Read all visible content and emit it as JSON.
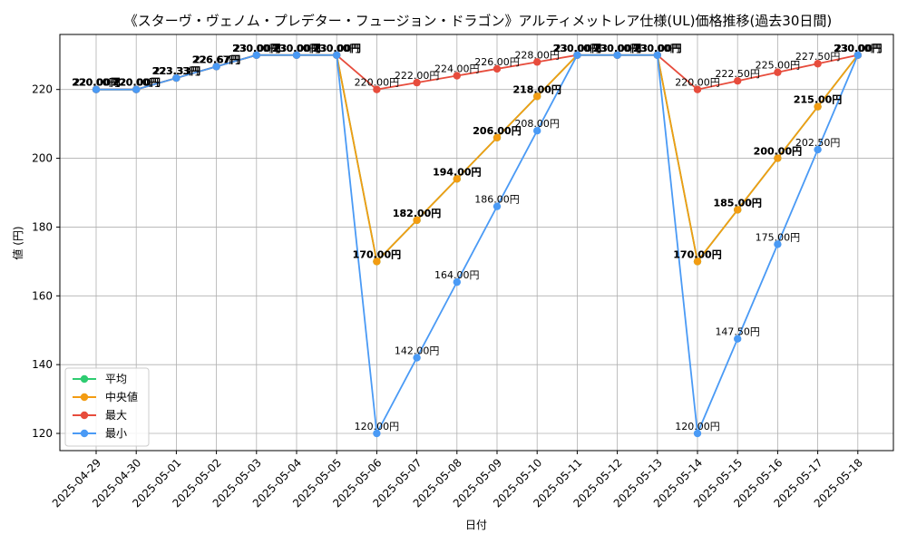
{
  "chart_data": {
    "type": "line",
    "title": "《スターヴ・ヴェノム・プレデター・フュージョン・ドラゴン》アルティメットレア仕様(UL)価格推移(過去30日間)",
    "xlabel": "日付",
    "ylabel": "値 (円)",
    "ylim": [
      115,
      236
    ],
    "yticks": [
      120,
      140,
      160,
      180,
      200,
      220
    ],
    "grid": true,
    "legend_position": "lower-left",
    "categories": [
      "2025-04-29",
      "2025-04-30",
      "2025-05-01",
      "2025-05-02",
      "2025-05-03",
      "2025-05-04",
      "2025-05-05",
      "2025-05-06",
      "2025-05-07",
      "2025-05-08",
      "2025-05-09",
      "2025-05-10",
      "2025-05-11",
      "2025-05-12",
      "2025-05-13",
      "2025-05-14",
      "2025-05-15",
      "2025-05-16",
      "2025-05-17",
      "2025-05-18"
    ],
    "series": [
      {
        "name": "平均",
        "color": "#2ecc71",
        "values": [
          220.0,
          220.0,
          223.33,
          226.67,
          230.0,
          230.0,
          230.0,
          170.0,
          182.0,
          194.0,
          206.0,
          218.0,
          230.0,
          230.0,
          230.0,
          170.0,
          185.0,
          200.0,
          215.0,
          230.0
        ]
      },
      {
        "name": "中央値",
        "color": "#f39c12",
        "values": [
          220.0,
          220.0,
          223.33,
          226.67,
          230.0,
          230.0,
          230.0,
          170.0,
          182.0,
          194.0,
          206.0,
          218.0,
          230.0,
          230.0,
          230.0,
          170.0,
          185.0,
          200.0,
          215.0,
          230.0
        ]
      },
      {
        "name": "最大",
        "color": "#e74c3c",
        "values": [
          220.0,
          220.0,
          223.33,
          226.67,
          230.0,
          230.0,
          230.0,
          220.0,
          222.0,
          224.0,
          226.0,
          228.0,
          230.0,
          230.0,
          230.0,
          220.0,
          222.5,
          225.0,
          227.5,
          230.0
        ]
      },
      {
        "name": "最小",
        "color": "#4a9af5",
        "values": [
          220.0,
          220.0,
          223.33,
          226.67,
          230.0,
          230.0,
          230.0,
          120.0,
          142.0,
          164.0,
          186.0,
          208.0,
          230.0,
          230.0,
          230.0,
          120.0,
          147.5,
          175.0,
          202.5,
          230.0
        ]
      }
    ],
    "value_label_suffix": "円"
  }
}
